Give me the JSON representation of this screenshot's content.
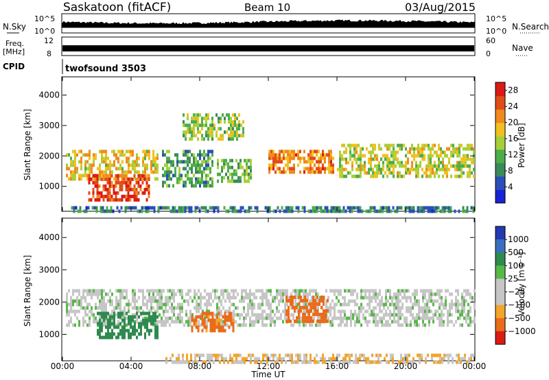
{
  "header": {
    "station": "Saskatoon (fitACF)",
    "beam": "Beam 10",
    "date": "03/Aug/2015"
  },
  "strips": {
    "nsky_label": "N.Sky",
    "nsky_ticks": [
      "10^5",
      "10^0"
    ],
    "nsearch_label": "N.Search",
    "nsearch_ticks": [
      "10^5",
      "10^0"
    ],
    "freq_label": "Freq.",
    "freq_unit": "[MHz]",
    "freq_ticks": [
      "12",
      "8"
    ],
    "nave_label": "Nave",
    "nave_ticks": [
      "60",
      "0"
    ],
    "cpid_label": "CPID",
    "cpid_value": "twofsound 3503"
  },
  "colors": {
    "power": [
      "#1a22d6",
      "#2a4fb8",
      "#3b8a5a",
      "#4cae4a",
      "#a6d03a",
      "#f2c01e",
      "#f08a1c",
      "#e24c18",
      "#dc1a14"
    ],
    "velocity": [
      "#2438b0",
      "#3a6fc0",
      "#2e8a4e",
      "#58b848",
      "#c6c6c6",
      "#c6c6c6",
      "#f2a52a",
      "#ea6b1a",
      "#dc1a14"
    ]
  },
  "chart_data": [
    {
      "type": "heatmap",
      "name": "power",
      "ylabel": "Slant Range [km]",
      "x_ticks": [
        "00:00",
        "04:00",
        "08:00",
        "12:00",
        "16:00",
        "20:00",
        "00:00"
      ],
      "xlim_hours": [
        0,
        24
      ],
      "y_ticks": [
        1000,
        2000,
        3000,
        4000
      ],
      "ylim_km": [
        180,
        4600
      ],
      "colorbar": {
        "label": "Power [dB]",
        "ticks": [
          "4",
          "8",
          "12",
          "16",
          "20",
          "24",
          "28"
        ],
        "range": [
          0,
          30
        ]
      },
      "regions": [
        {
          "t0": 0.2,
          "t1": 5.5,
          "r0": 1200,
          "r1": 2200,
          "value": 18
        },
        {
          "t0": 1.5,
          "t1": 5.0,
          "r0": 600,
          "r1": 1400,
          "value": 26
        },
        {
          "t0": 5.8,
          "t1": 8.8,
          "r0": 1000,
          "r1": 2200,
          "value": 10
        },
        {
          "t0": 7.0,
          "t1": 10.5,
          "r0": 2600,
          "r1": 3400,
          "value": 14
        },
        {
          "t0": 9.0,
          "t1": 11.0,
          "r0": 1200,
          "r1": 1900,
          "value": 12
        },
        {
          "t0": 12.0,
          "t1": 15.8,
          "r0": 1500,
          "r1": 2200,
          "value": 22
        },
        {
          "t0": 16.0,
          "t1": 24.0,
          "r0": 1300,
          "r1": 2400,
          "value": 16
        },
        {
          "t0": 0.5,
          "t1": 24.0,
          "r0": 200,
          "r1": 350,
          "value": 8
        }
      ]
    },
    {
      "type": "heatmap",
      "name": "velocity",
      "ylabel": "Slant Range [km]",
      "xlabel": "Time UT",
      "x_ticks": [
        "00:00",
        "04:00",
        "08:00",
        "12:00",
        "16:00",
        "20:00",
        "00:00"
      ],
      "xlim_hours": [
        0,
        24
      ],
      "y_ticks": [
        1000,
        2000,
        3000,
        4000
      ],
      "ylim_km": [
        180,
        4600
      ],
      "colorbar": {
        "label": "Velocity [m s⁻¹]",
        "ticks": [
          "1000",
          "500",
          "100",
          "25",
          "−25",
          "−100",
          "−500",
          "−1000"
        ]
      },
      "regions": [
        {
          "t0": 0.2,
          "t1": 24.0,
          "r0": 1300,
          "r1": 2400,
          "value": 0
        },
        {
          "t0": 2.0,
          "t1": 5.5,
          "r0": 900,
          "r1": 1700,
          "value": 120
        },
        {
          "t0": 7.5,
          "t1": 10.0,
          "r0": 1100,
          "r1": 1700,
          "value": -150
        },
        {
          "t0": 13.0,
          "t1": 15.5,
          "r0": 1400,
          "r1": 2200,
          "value": -200
        },
        {
          "t0": 6.0,
          "t1": 24.0,
          "r0": 180,
          "r1": 400,
          "value": -60
        }
      ]
    }
  ]
}
